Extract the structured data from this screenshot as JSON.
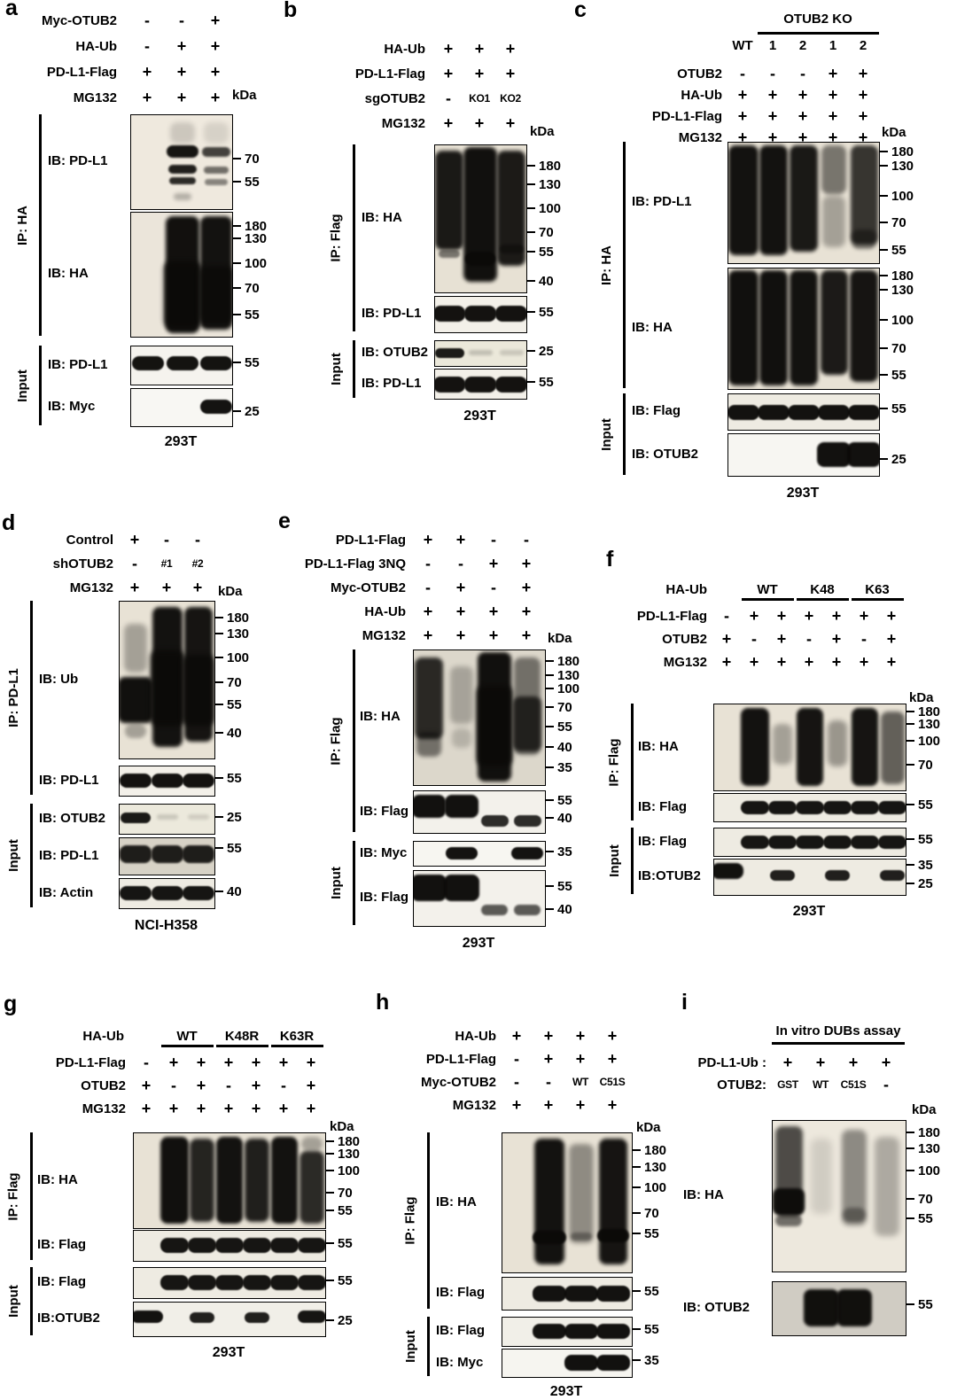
{
  "panels": [
    {
      "id": "a",
      "label": "a",
      "kda": "kDa",
      "conditions": [
        {
          "label": "Myc-OTUB2",
          "values": [
            "-",
            "-",
            "+"
          ]
        },
        {
          "label": "HA-Ub",
          "values": [
            "-",
            "+",
            "+"
          ]
        },
        {
          "label": "PD-L1-Flag",
          "values": [
            "+",
            "+",
            "+"
          ]
        },
        {
          "label": "MG132",
          "values": [
            "+",
            "+",
            "+"
          ]
        }
      ],
      "blots": [
        {
          "ib": "IB: PD-L1",
          "markers": [
            "70",
            "55"
          ]
        },
        {
          "ib": "IB: HA",
          "markers": [
            "180",
            "130",
            "100",
            "70",
            "55"
          ]
        },
        {
          "ib": "IB: PD-L1",
          "markers": [
            "55"
          ]
        },
        {
          "ib": "IB: Myc",
          "markers": [
            "25"
          ]
        }
      ],
      "groups": [
        {
          "label": "IP: HA"
        },
        {
          "label": "Input"
        }
      ],
      "footer": "293T"
    },
    {
      "id": "b",
      "label": "b",
      "kda": "kDa",
      "conditions": [
        {
          "label": "HA-Ub",
          "values": [
            "+",
            "+",
            "+"
          ]
        },
        {
          "label": "PD-L1-Flag",
          "values": [
            "+",
            "+",
            "+"
          ]
        },
        {
          "label": "sgOTUB2",
          "values": [
            "-",
            "KO1",
            "KO2"
          ]
        },
        {
          "label": "MG132",
          "values": [
            "+",
            "+",
            "+"
          ]
        }
      ],
      "blots": [
        {
          "ib": "IB: HA",
          "markers": [
            "180",
            "130",
            "100",
            "70",
            "55",
            "40"
          ]
        },
        {
          "ib": "IB: PD-L1",
          "markers": [
            "55"
          ]
        },
        {
          "ib": "IB: OTUB2",
          "markers": [
            "25"
          ]
        },
        {
          "ib": "IB: PD-L1",
          "markers": [
            "55"
          ]
        }
      ],
      "groups": [
        {
          "label": "IP: Flag"
        },
        {
          "label": "Input"
        }
      ],
      "footer": "293T"
    },
    {
      "id": "c",
      "label": "c",
      "kda": "kDa",
      "header": {
        "title": "OTUB2 KO",
        "lane_labels": [
          "WT",
          "1",
          "2",
          "1",
          "2"
        ]
      },
      "conditions": [
        {
          "label": "OTUB2",
          "values": [
            "-",
            "-",
            "-",
            "+",
            "+"
          ]
        },
        {
          "label": "HA-Ub",
          "values": [
            "+",
            "+",
            "+",
            "+",
            "+"
          ]
        },
        {
          "label": "PD-L1-Flag",
          "values": [
            "+",
            "+",
            "+",
            "+",
            "+"
          ]
        },
        {
          "label": "MG132",
          "values": [
            "+",
            "+",
            "+",
            "+",
            "+"
          ]
        }
      ],
      "blots": [
        {
          "ib": "IB: PD-L1",
          "markers": [
            "180",
            "130",
            "100",
            "70",
            "55"
          ]
        },
        {
          "ib": "IB: HA",
          "markers": [
            "180",
            "130",
            "100",
            "70",
            "55"
          ]
        },
        {
          "ib": "IB: Flag",
          "markers": [
            "55"
          ]
        },
        {
          "ib": "IB: OTUB2",
          "markers": [
            "25"
          ]
        }
      ],
      "groups": [
        {
          "label": "IP: HA"
        },
        {
          "label": "Input"
        }
      ],
      "footer": "293T"
    },
    {
      "id": "d",
      "label": "d",
      "kda": "kDa",
      "conditions": [
        {
          "label": "Control",
          "values": [
            "+",
            "-",
            "-"
          ]
        },
        {
          "label": "shOTUB2",
          "values": [
            "-",
            "#1",
            "#2"
          ]
        },
        {
          "label": "MG132",
          "values": [
            "+",
            "+",
            "+"
          ]
        }
      ],
      "blots": [
        {
          "ib": "IB: Ub",
          "markers": [
            "180",
            "130",
            "100",
            "70",
            "55",
            "40"
          ]
        },
        {
          "ib": "IB: PD-L1",
          "markers": [
            "55"
          ]
        },
        {
          "ib": "IB: OTUB2",
          "markers": [
            "25"
          ]
        },
        {
          "ib": "IB: PD-L1",
          "markers": [
            "55"
          ]
        },
        {
          "ib": "IB: Actin",
          "markers": [
            "40"
          ]
        }
      ],
      "groups": [
        {
          "label": "IP: PD-L1"
        },
        {
          "label": "Input"
        }
      ],
      "footer": "NCI-H358"
    },
    {
      "id": "e",
      "label": "e",
      "kda": "kDa",
      "conditions": [
        {
          "label": "PD-L1-Flag",
          "values": [
            "+",
            "+",
            "-",
            "-"
          ]
        },
        {
          "label": "PD-L1-Flag 3NQ",
          "values": [
            "-",
            "-",
            "+",
            "+"
          ]
        },
        {
          "label": "Myc-OTUB2",
          "values": [
            "-",
            "+",
            "-",
            "+"
          ]
        },
        {
          "label": "HA-Ub",
          "values": [
            "+",
            "+",
            "+",
            "+"
          ]
        },
        {
          "label": "MG132",
          "values": [
            "+",
            "+",
            "+",
            "+"
          ]
        }
      ],
      "blots": [
        {
          "ib": "IB: HA",
          "markers": [
            "180",
            "130",
            "100",
            "70",
            "55",
            "40",
            "35"
          ]
        },
        {
          "ib": "IB: Flag",
          "markers": [
            "55",
            "40"
          ]
        },
        {
          "ib": "IB: Myc",
          "markers": [
            "35"
          ]
        },
        {
          "ib": "IB: Flag",
          "markers": [
            "55",
            "40"
          ]
        }
      ],
      "groups": [
        {
          "label": "IP: Flag"
        },
        {
          "label": "Input"
        }
      ],
      "footer": "293T"
    },
    {
      "id": "f",
      "label": "f",
      "kda": "kDa",
      "header": {
        "title": "HA-Ub",
        "groups": [
          "WT",
          "K48",
          "K63"
        ]
      },
      "conditions": [
        {
          "label": "PD-L1-Flag",
          "values": [
            "-",
            "+",
            "+",
            "+",
            "+",
            "+",
            "+"
          ]
        },
        {
          "label": "OTUB2",
          "values": [
            "+",
            "-",
            "+",
            "-",
            "+",
            "-",
            "+"
          ]
        },
        {
          "label": "MG132",
          "values": [
            "+",
            "+",
            "+",
            "+",
            "+",
            "+",
            "+"
          ]
        }
      ],
      "blots": [
        {
          "ib": "IB: HA",
          "markers": [
            "180",
            "130",
            "100",
            "70"
          ]
        },
        {
          "ib": "IB: Flag",
          "markers": [
            "55"
          ]
        },
        {
          "ib": "IB: Flag",
          "markers": [
            "55"
          ]
        },
        {
          "ib": "IB:OTUB2",
          "markers": [
            "35",
            "25"
          ]
        }
      ],
      "groups": [
        {
          "label": "IP: Flag"
        },
        {
          "label": "Input"
        }
      ],
      "footer": "293T"
    },
    {
      "id": "g",
      "label": "g",
      "kda": "kDa",
      "header": {
        "title": "HA-Ub",
        "groups": [
          "WT",
          "K48R",
          "K63R"
        ]
      },
      "conditions": [
        {
          "label": "PD-L1-Flag",
          "values": [
            "-",
            "+",
            "+",
            "+",
            "+",
            "+",
            "+"
          ]
        },
        {
          "label": "OTUB2",
          "values": [
            "+",
            "-",
            "+",
            "-",
            "+",
            "-",
            "+"
          ]
        },
        {
          "label": "MG132",
          "values": [
            "+",
            "+",
            "+",
            "+",
            "+",
            "+",
            "+"
          ]
        }
      ],
      "blots": [
        {
          "ib": "IB: HA",
          "markers": [
            "180",
            "130",
            "100",
            "70",
            "55"
          ]
        },
        {
          "ib": "IB: Flag",
          "markers": [
            "55"
          ]
        },
        {
          "ib": "IB: Flag",
          "markers": [
            "55"
          ]
        },
        {
          "ib": "IB:OTUB2",
          "markers": [
            "25"
          ]
        }
      ],
      "groups": [
        {
          "label": "IP: Flag"
        },
        {
          "label": "Input"
        }
      ],
      "footer": "293T"
    },
    {
      "id": "h",
      "label": "h",
      "kda": "kDa",
      "conditions": [
        {
          "label": "HA-Ub",
          "values": [
            "+",
            "+",
            "+",
            "+"
          ]
        },
        {
          "label": "PD-L1-Flag",
          "values": [
            "-",
            "+",
            "+",
            "+"
          ]
        },
        {
          "label": "Myc-OTUB2",
          "values": [
            "-",
            "-",
            "WT",
            "C51S"
          ]
        },
        {
          "label": "MG132",
          "values": [
            "+",
            "+",
            "+",
            "+"
          ]
        }
      ],
      "blots": [
        {
          "ib": "IB: HA",
          "markers": [
            "180",
            "130",
            "100",
            "70",
            "55"
          ]
        },
        {
          "ib": "IB: Flag",
          "markers": [
            "55"
          ]
        },
        {
          "ib": "IB: Flag",
          "markers": [
            "55"
          ]
        },
        {
          "ib": "IB: Myc",
          "markers": [
            "35"
          ]
        }
      ],
      "groups": [
        {
          "label": "IP: Flag"
        },
        {
          "label": "Input"
        }
      ],
      "footer": "293T"
    },
    {
      "id": "i",
      "label": "i",
      "kda": "kDa",
      "header": {
        "title": "In vitro DUBs assay"
      },
      "conditions": [
        {
          "label": "PD-L1-Ub :",
          "values": [
            "+",
            "+",
            "+",
            "+"
          ]
        },
        {
          "label": "OTUB2:",
          "values": [
            "GST",
            "WT",
            "C51S",
            "-"
          ]
        }
      ],
      "blots": [
        {
          "ib": "IB: HA",
          "markers": [
            "180",
            "130",
            "100",
            "70",
            "55"
          ]
        },
        {
          "ib": "IB: OTUB2",
          "markers": [
            "55"
          ]
        }
      ],
      "groups": []
    }
  ]
}
